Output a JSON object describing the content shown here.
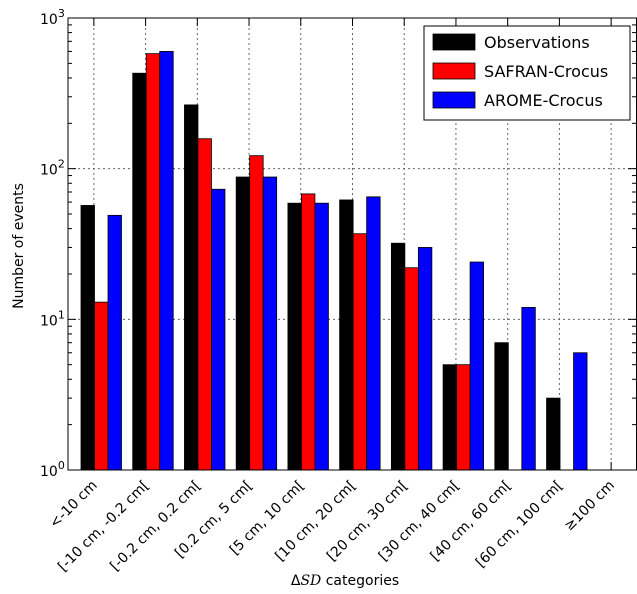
{
  "chart_data": {
    "type": "bar",
    "categories": [
      "<-10 cm",
      "[-10 cm, -0.2 cm[",
      "[-0.2 cm, 0.2 cm[",
      "[0.2 cm, 5 cm[",
      "[5 cm, 10 cm[",
      "[10 cm, 20 cm[",
      "[20 cm, 30 cm[",
      "[30 cm, 40 cm[",
      "[40 cm, 60 cm[",
      "[60 cm, 100 cm[",
      "≥100 cm"
    ],
    "series": [
      {
        "name": "Observations",
        "color": "#000000",
        "values": [
          57,
          430,
          265,
          88,
          59,
          62,
          32,
          5,
          7,
          3,
          null
        ]
      },
      {
        "name": "SAFRAN-Crocus",
        "color": "#ff0000",
        "values": [
          13,
          580,
          158,
          122,
          68,
          37,
          22,
          5,
          null,
          null,
          null
        ]
      },
      {
        "name": "AROME-Crocus",
        "color": "#0000ff",
        "values": [
          49,
          600,
          73,
          88,
          59,
          65,
          30,
          24,
          12,
          6,
          null
        ]
      }
    ],
    "yscale": "log",
    "ylim": [
      1,
      1000
    ],
    "ylabel": "Number of events",
    "xlabel_prefix": "Δ",
    "xlabel_italic": "SD",
    "xlabel_suffix": " categories",
    "yticks": [
      {
        "value": 1,
        "base": "10",
        "exp": "0"
      },
      {
        "value": 10,
        "base": "10",
        "exp": "1"
      },
      {
        "value": 100,
        "base": "10",
        "exp": "2"
      },
      {
        "value": 1000,
        "base": "10",
        "exp": "3"
      }
    ],
    "grid": true,
    "legend_position": "top-right"
  }
}
